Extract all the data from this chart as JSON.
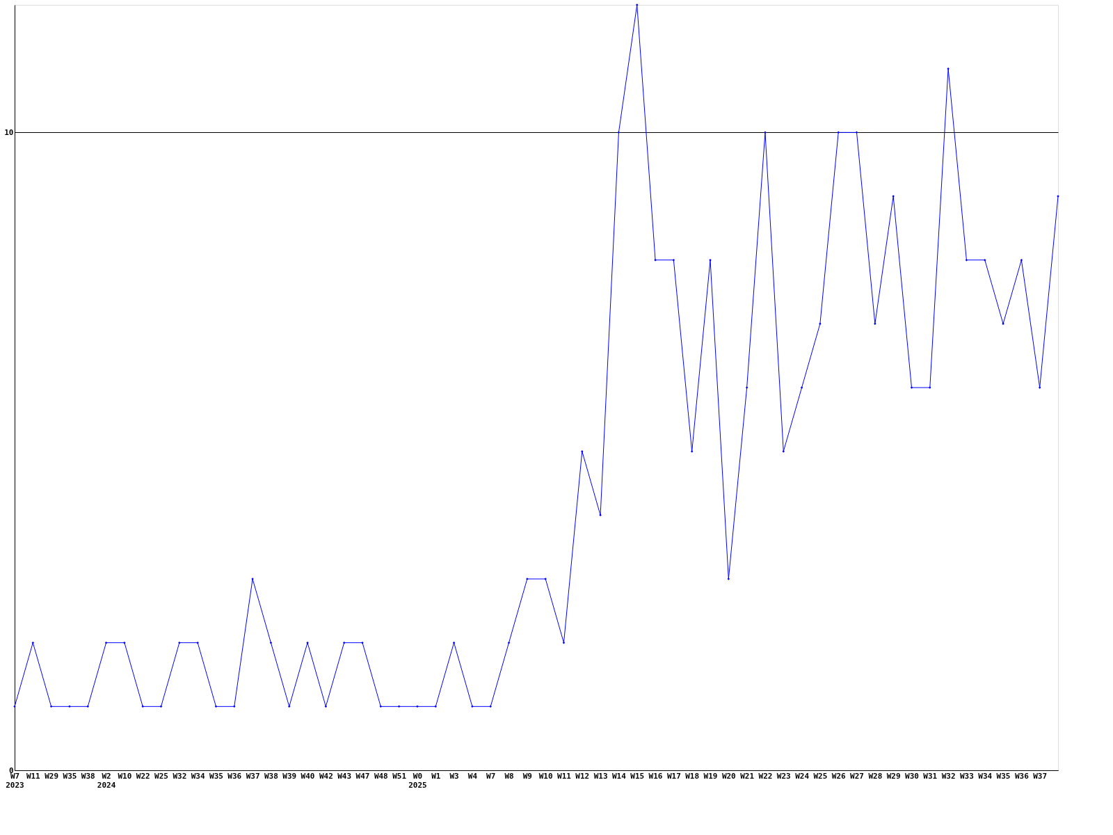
{
  "chart_data": {
    "type": "line",
    "categories": [
      "W7\n2023",
      "W11",
      "W29",
      "W35",
      "W38",
      "W2\n2024",
      "W10",
      "W22",
      "W25",
      "W32",
      "W34",
      "W35",
      "W36",
      "W37",
      "W38",
      "W39",
      "W40",
      "W42",
      "W43",
      "W47",
      "W48",
      "W51",
      "W0\n2025",
      "W1",
      "W3",
      "W4",
      "W7",
      "W8",
      "W9",
      "W10",
      "W11",
      "W12",
      "W13",
      "W14",
      "W15",
      "W16",
      "W17",
      "W18",
      "W19",
      "W20",
      "W21",
      "W22",
      "W23",
      "W24",
      "W25",
      "W26",
      "W27",
      "W28",
      "W29",
      "W30",
      "W31",
      "W32",
      "W33",
      "W34",
      "W35",
      "W36",
      "W37",
      null
    ],
    "series": [
      {
        "color": "#0000ff",
        "values": [
          1,
          2,
          1,
          1,
          1,
          2,
          2,
          1,
          1,
          2,
          2,
          1,
          1,
          3,
          2,
          1,
          2,
          1,
          2,
          2,
          1,
          1,
          1,
          1,
          2,
          1,
          1,
          2,
          3,
          3,
          2,
          5,
          4,
          10,
          12,
          8,
          8,
          5,
          8,
          3,
          6,
          10,
          5,
          6,
          7,
          10,
          10,
          7,
          9,
          6,
          6,
          11,
          8,
          8,
          7,
          8,
          6,
          9
        ]
      }
    ],
    "ylim": [
      0,
      12
    ],
    "yticks": [
      0,
      10
    ],
    "grid": "y",
    "marker": "diamond",
    "line_style": "solid"
  }
}
